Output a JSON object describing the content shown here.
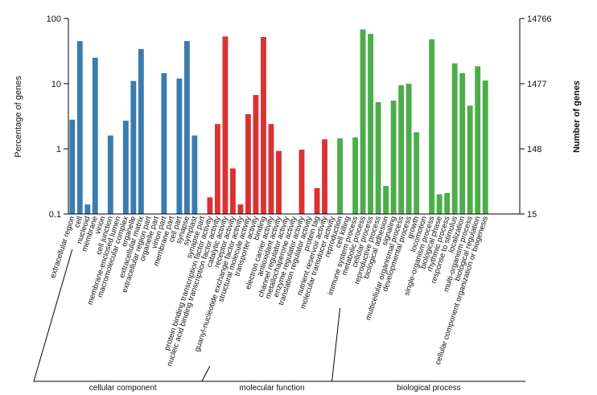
{
  "chart_data": {
    "type": "bar",
    "ylabel_left": "Percentage of genes",
    "ylabel_right": "Number of genes",
    "yscale": "log",
    "ylim": [
      0.1,
      100
    ],
    "left_ticks": [
      "0.1",
      "1",
      "10",
      "100"
    ],
    "right_ticks": [
      "15",
      "148",
      "1477",
      "14766"
    ],
    "colors": {
      "cellular component": "#3a7bb0",
      "molecular function": "#d93232",
      "biological process": "#4cad4a"
    },
    "groups": [
      {
        "name": "cellular component",
        "first": 0,
        "last": 17
      },
      {
        "name": "molecular function",
        "first": 18,
        "last": 34
      },
      {
        "name": "biological process",
        "first": 35,
        "last": 58
      }
    ],
    "categories": [
      "extracellular region",
      "cell",
      "nucleoid",
      "membrane",
      "virion",
      "cell junction",
      "membrane-enclosed lumen",
      "macromolecular complex",
      "organelle",
      "extracellular matrix",
      "extracellular region part",
      "organelle part",
      "virion part",
      "membrane part",
      "cell part",
      "synapse",
      "symplast",
      "synapse part",
      "protein binding transcription factor activity",
      "nucleic acid binding transcription factor activity",
      "catalytic activity",
      "receptor activity",
      "guanyl-nucleotide exchange factor activity",
      "structural molecule activity",
      "transporter activity",
      "binding",
      "electron carrier activity",
      "antioxidant activity",
      "channel regulator activity",
      "metallochaperone activity",
      "enzyme regulator activity",
      "translation regulator activity",
      "protein tag",
      "nutrient reservoir activity",
      "molecular transducer activity",
      "reproduction",
      "cell killing",
      "immune system process",
      "metabolic process",
      "cellular process",
      "reproductive process",
      "biological adhesion",
      "signaling",
      "multicellular organismal process",
      "developmental process",
      "growth",
      "locomotion",
      "single-organism process",
      "biological phase",
      "rhythmic process",
      "response to stimulus",
      "localization",
      "multi-organism process",
      "biological regulation",
      "cellular component organization or biogenesis",
      "",
      "",
      "",
      ""
    ],
    "values": [
      2.8,
      45,
      0.14,
      25,
      0.1,
      1.6,
      0.1,
      2.7,
      11,
      34,
      0.1,
      0.1,
      14.5,
      0.1,
      12,
      45,
      1.6,
      0.1,
      0.18,
      2.4,
      53,
      0.5,
      0.14,
      3.4,
      6.7,
      52,
      2.4,
      0.93,
      0.1,
      0.1,
      0.97,
      0.1,
      0.25,
      1.4,
      0.1,
      1.45,
      0.1,
      1.5,
      68,
      58,
      5.2,
      0.27,
      5.5,
      9.5,
      10,
      1.8,
      0.1,
      48,
      0.2,
      0.21,
      20.5,
      14.5,
      4.6,
      18.5,
      11.2,
      0.1,
      0.1,
      0.1,
      0.1
    ]
  }
}
